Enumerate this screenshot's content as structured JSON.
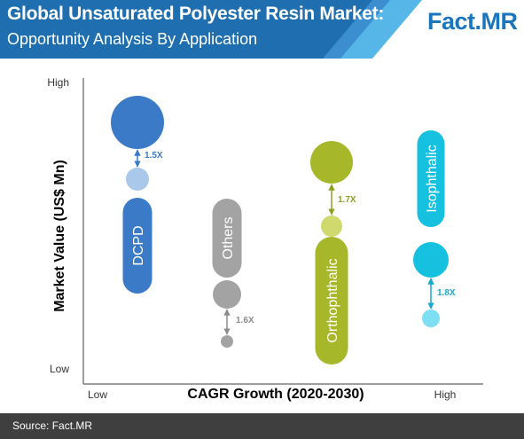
{
  "header": {
    "title": "Global Unsaturated Polyester Resin Market:",
    "subtitle": "Opportunity Analysis By Application",
    "logo_main": "Fact",
    "logo_dot": ".",
    "logo_tail": "MR",
    "colors": {
      "dark_blue": "#1f6fb0",
      "mid_blue": "#2e86c8",
      "light_blue": "#56b6e8"
    }
  },
  "chart_data": {
    "type": "bubble",
    "xlabel": "CAGR Growth (2020-2030)",
    "ylabel": "Market Value (US$ Mn)",
    "x_ticks": [
      "Low",
      "High"
    ],
    "y_ticks": [
      "Low",
      "High"
    ],
    "series": [
      {
        "name": "DCPD",
        "color": "#3a7ac6",
        "light_color": "#a9c8ea",
        "current_size": "large",
        "future_size": "small",
        "multiplier": "1.5X",
        "x_rank": 1,
        "y_rank": 4
      },
      {
        "name": "Others",
        "color": "#a3a3a3",
        "light_color": "#a3a3a3",
        "current_size": "medium",
        "future_size": "tiny",
        "multiplier": "1.6X",
        "x_rank": 2,
        "y_rank": 2
      },
      {
        "name": "Orthophthalic",
        "color": "#a6b82a",
        "light_color": "#cfd96e",
        "current_size": "medium",
        "future_size": "small",
        "multiplier": "1.7X",
        "x_rank": 3,
        "y_rank": 3
      },
      {
        "name": "Isophthalic",
        "color": "#16c0df",
        "light_color": "#7ddff1",
        "current_size": "medium",
        "future_size": "small",
        "multiplier": "1.8X",
        "x_rank": 4,
        "y_rank": 1
      }
    ]
  },
  "footer": {
    "source": "Source: Fact.MR"
  }
}
